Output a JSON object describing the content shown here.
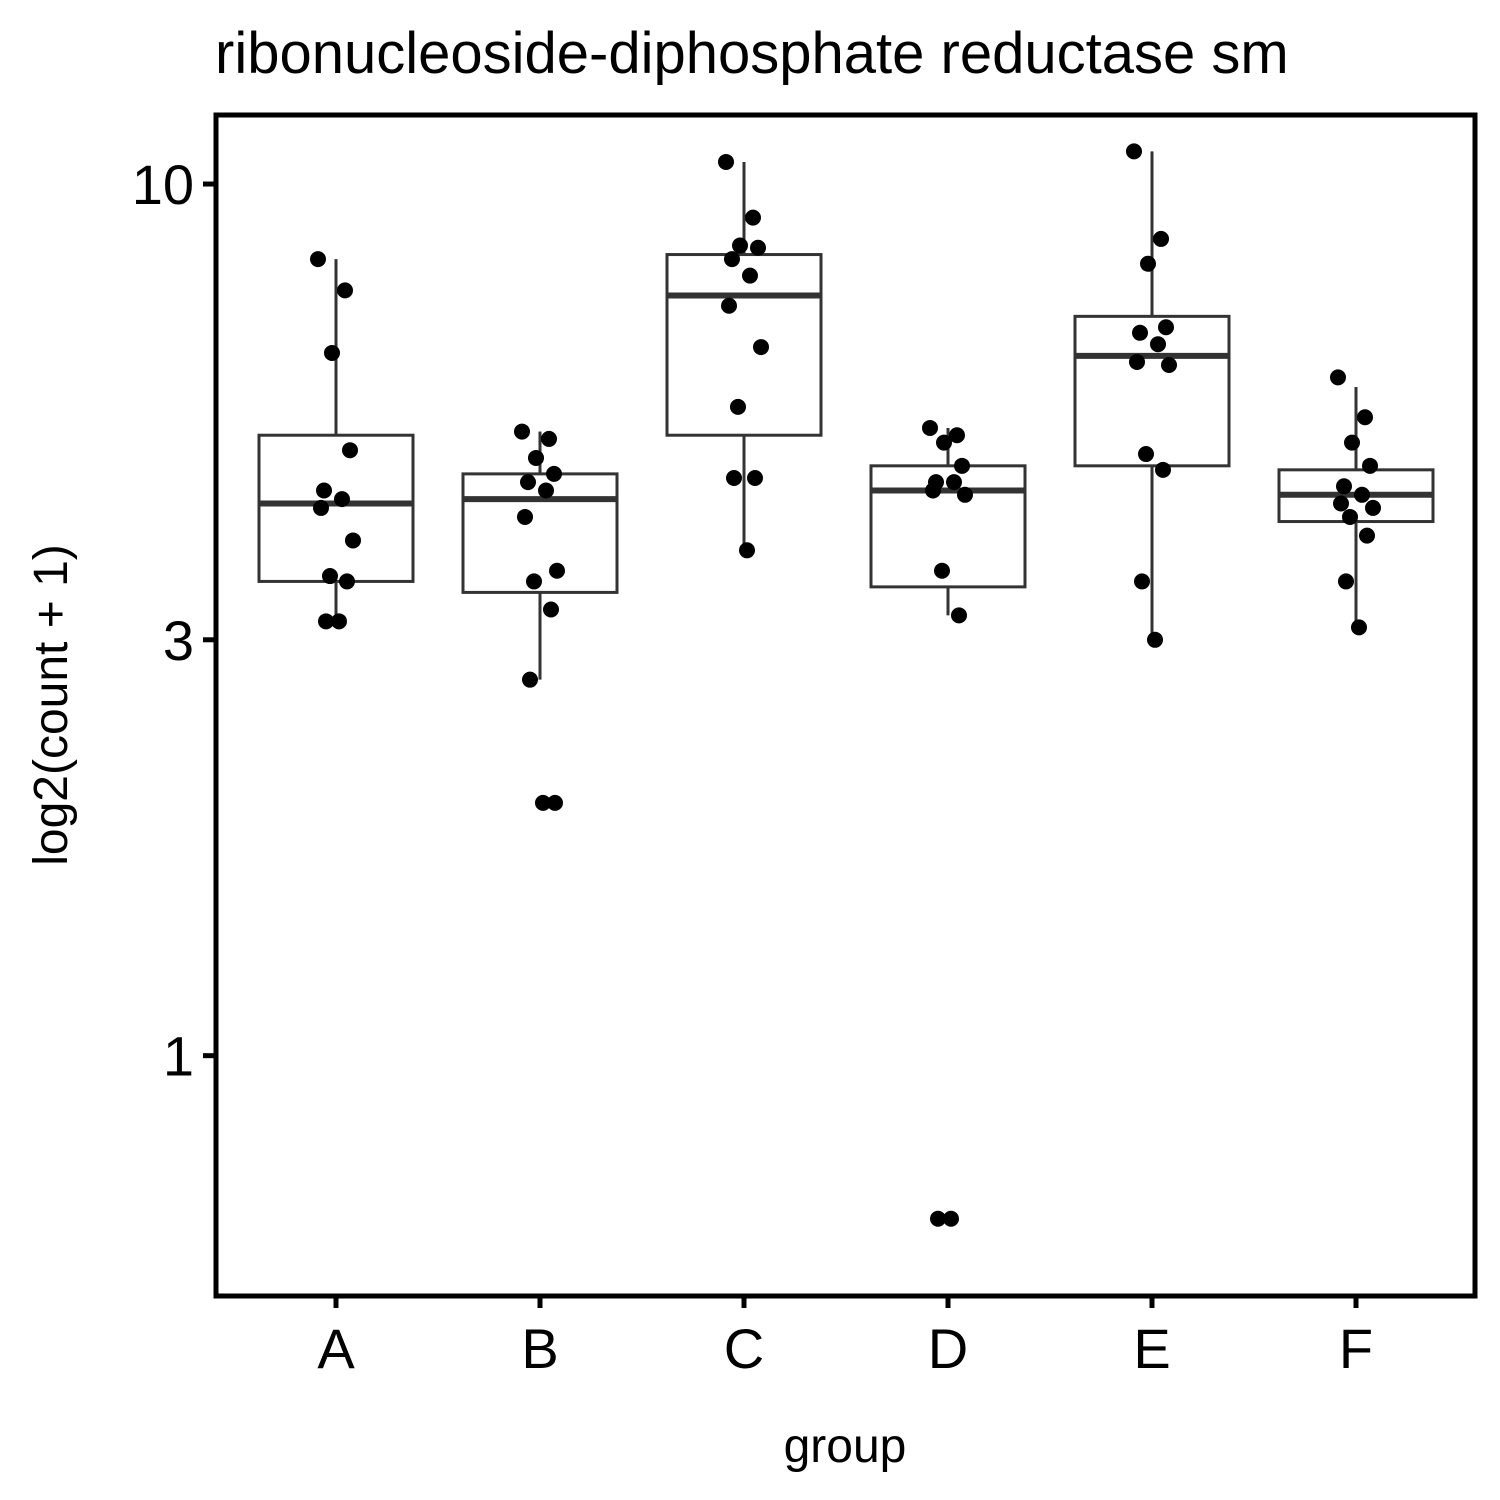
{
  "chart_data": {
    "type": "box",
    "title": "ribonucleoside-diphosphate reductase sm",
    "xlabel": "group",
    "ylabel": "log2(count + 1)",
    "y_scale": "log",
    "ylim": [
      0.53,
      12
    ],
    "y_ticks": [
      1,
      3,
      10
    ],
    "y_tick_labels": [
      "1",
      "3",
      "10"
    ],
    "categories": [
      "A",
      "B",
      "C",
      "D",
      "E",
      "F"
    ],
    "boxes": [
      {
        "group": "A",
        "lower_whisker": 3.15,
        "q1": 3.5,
        "median": 4.3,
        "q3": 5.15,
        "upper_whisker": 8.2
      },
      {
        "group": "B",
        "lower_whisker": 2.7,
        "q1": 3.4,
        "median": 4.35,
        "q3": 4.65,
        "upper_whisker": 5.2
      },
      {
        "group": "C",
        "lower_whisker": 3.8,
        "q1": 5.15,
        "median": 7.45,
        "q3": 8.3,
        "upper_whisker": 10.6
      },
      {
        "group": "D",
        "lower_whisker": 3.2,
        "q1": 3.45,
        "median": 4.45,
        "q3": 4.75,
        "upper_whisker": 5.25
      },
      {
        "group": "E",
        "lower_whisker": 3.0,
        "q1": 4.75,
        "median": 6.35,
        "q3": 7.05,
        "upper_whisker": 10.9
      },
      {
        "group": "F",
        "lower_whisker": 3.1,
        "q1": 4.1,
        "median": 4.4,
        "q3": 4.7,
        "upper_whisker": 5.85
      }
    ],
    "points": {
      "A": [
        8.2,
        7.55,
        6.4,
        4.95,
        4.45,
        4.35,
        4.25,
        3.9,
        3.55,
        3.5,
        3.15,
        3.15
      ],
      "B": [
        5.2,
        5.1,
        4.85,
        4.65,
        4.55,
        4.45,
        4.15,
        3.6,
        3.5,
        3.25,
        2.7,
        1.95,
        1.95
      ],
      "C": [
        10.6,
        9.15,
        8.5,
        8.45,
        8.2,
        7.85,
        7.25,
        6.5,
        5.55,
        4.6,
        4.6,
        3.8
      ],
      "D": [
        5.25,
        5.15,
        5.05,
        4.75,
        4.55,
        4.55,
        4.45,
        4.4,
        3.6,
        3.2,
        0.65,
        0.65
      ],
      "E": [
        10.9,
        8.65,
        8.1,
        6.85,
        6.75,
        6.55,
        6.25,
        6.2,
        4.9,
        4.7,
        3.5,
        3.0
      ],
      "F": [
        6.0,
        5.4,
        5.05,
        4.75,
        4.5,
        4.4,
        4.3,
        4.25,
        4.15,
        3.95,
        3.5,
        3.1
      ]
    },
    "grid": false,
    "legend": "none"
  }
}
